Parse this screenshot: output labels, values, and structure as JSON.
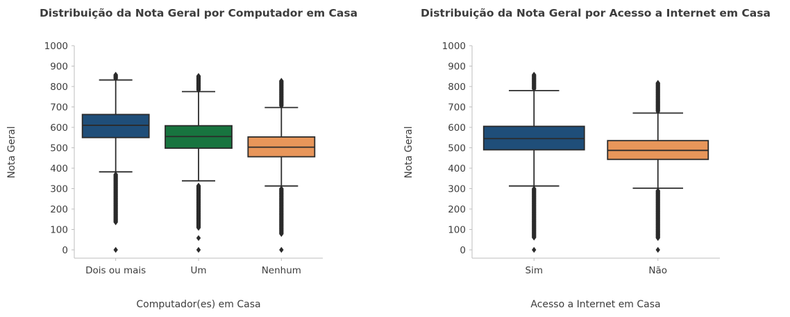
{
  "chart_data": [
    {
      "type": "box",
      "title": "Distribuição da Nota Geral por Computador em Casa",
      "xlabel": "Computador(es) em Casa",
      "ylabel": "Nota Geral",
      "ylim": [
        -40,
        1000
      ],
      "yticks": [
        0,
        100,
        200,
        300,
        400,
        500,
        600,
        700,
        800,
        900,
        1000
      ],
      "grid": false,
      "categories": [
        "Dois ou mais",
        "Um",
        "Nenhum"
      ],
      "boxes": [
        {
          "category": "Dois ou mais",
          "color": "#1f4e79",
          "q1": 550,
          "median": 610,
          "q3": 663,
          "whisker_low": 382,
          "whisker_high": 832,
          "outliers_low": [
            0,
            135,
            150,
            170,
            190,
            210,
            230,
            250,
            270,
            290,
            310,
            330,
            350,
            370
          ],
          "outliers_high": [
            838,
            845,
            852,
            858
          ]
        },
        {
          "category": "Um",
          "color": "#18743f",
          "q1": 498,
          "median": 555,
          "q3": 608,
          "whisker_low": 338,
          "whisker_high": 775,
          "outliers_low": [
            0,
            58,
            108,
            135,
            155,
            175,
            195,
            215,
            235,
            255,
            275,
            295,
            315
          ],
          "outliers_high": [
            782,
            790,
            800,
            810,
            820,
            830,
            840,
            852
          ]
        },
        {
          "category": "Nenhum",
          "color": "#e8965a",
          "q1": 456,
          "median": 503,
          "q3": 553,
          "whisker_low": 313,
          "whisker_high": 697,
          "outliers_low": [
            0,
            78,
            100,
            125,
            150,
            175,
            200,
            225,
            250,
            275,
            300
          ],
          "outliers_high": [
            705,
            720,
            740,
            760,
            780,
            800,
            815,
            828
          ]
        }
      ]
    },
    {
      "type": "box",
      "title": "Distribuição da Nota Geral por Acesso a Internet em Casa",
      "xlabel": "Acesso a Internet em Casa",
      "ylabel": "Nota Geral",
      "ylim": [
        -40,
        1000
      ],
      "yticks": [
        0,
        100,
        200,
        300,
        400,
        500,
        600,
        700,
        800,
        900,
        1000
      ],
      "grid": false,
      "categories": [
        "Sim",
        "Não"
      ],
      "boxes": [
        {
          "category": "Sim",
          "color": "#1f4e79",
          "q1": 490,
          "median": 545,
          "q3": 605,
          "whisker_low": 313,
          "whisker_high": 780,
          "outliers_low": [
            0,
            60,
            80,
            100,
            120,
            140,
            160,
            180,
            200,
            220,
            240,
            260,
            280,
            300
          ],
          "outliers_high": [
            788,
            800,
            812,
            825,
            838,
            850,
            858
          ]
        },
        {
          "category": "Não",
          "color": "#e8965a",
          "q1": 443,
          "median": 487,
          "q3": 535,
          "whisker_low": 302,
          "whisker_high": 670,
          "outliers_low": [
            0,
            58,
            75,
            105,
            125,
            145,
            165,
            185,
            205,
            225,
            245,
            265,
            290
          ],
          "outliers_high": [
            678,
            690,
            705,
            720,
            740,
            760,
            780,
            800,
            818
          ]
        }
      ]
    }
  ]
}
